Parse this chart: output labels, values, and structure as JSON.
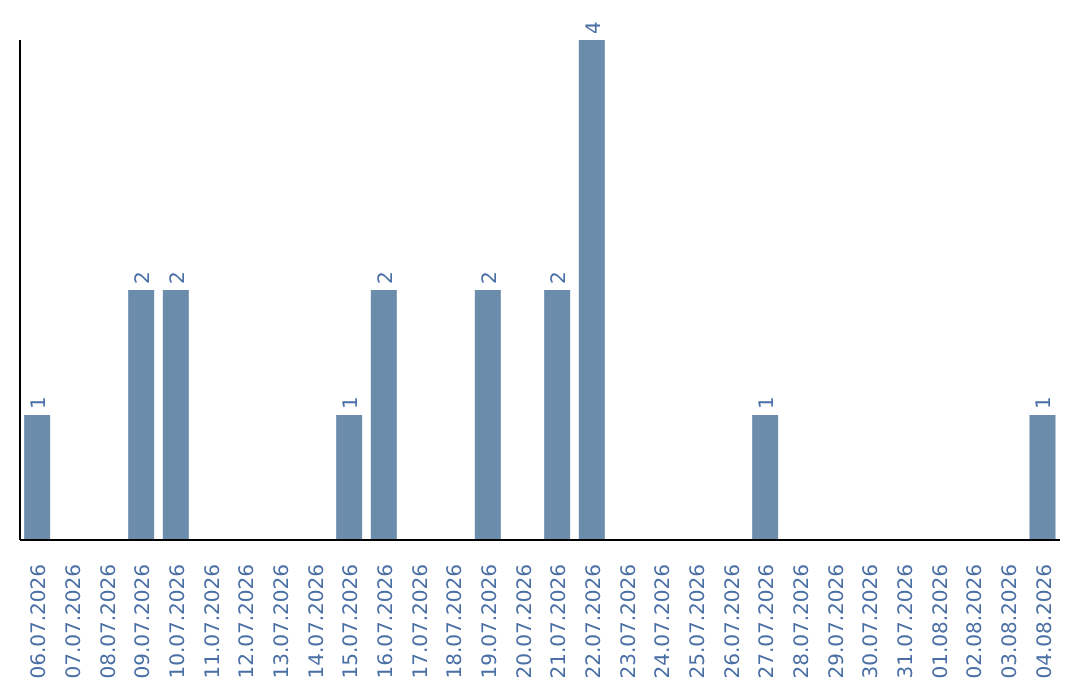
{
  "chart_data": {
    "type": "bar",
    "categories": [
      "06.07.2026",
      "07.07.2026",
      "08.07.2026",
      "09.07.2026",
      "10.07.2026",
      "11.07.2026",
      "12.07.2026",
      "13.07.2026",
      "14.07.2026",
      "15.07.2026",
      "16.07.2026",
      "17.07.2026",
      "18.07.2026",
      "19.07.2026",
      "20.07.2026",
      "21.07.2026",
      "22.07.2026",
      "23.07.2026",
      "24.07.2026",
      "25.07.2026",
      "26.07.2026",
      "27.07.2026",
      "28.07.2026",
      "29.07.2026",
      "30.07.2026",
      "31.07.2026",
      "01.08.2026",
      "02.08.2026",
      "03.08.2026",
      "04.08.2026"
    ],
    "values": [
      1,
      0,
      0,
      2,
      2,
      0,
      0,
      0,
      0,
      1,
      2,
      0,
      0,
      2,
      0,
      2,
      4,
      0,
      0,
      0,
      0,
      1,
      0,
      0,
      0,
      0,
      0,
      0,
      0,
      1
    ],
    "value_labels": [
      "1",
      null,
      null,
      "2",
      "2",
      null,
      null,
      null,
      null,
      "1",
      "2",
      null,
      null,
      "2",
      null,
      "2",
      "4",
      null,
      null,
      null,
      null,
      "1",
      null,
      null,
      null,
      null,
      null,
      null,
      null,
      "1"
    ],
    "color": "#6b8cab",
    "grid": false,
    "legend": false
  }
}
